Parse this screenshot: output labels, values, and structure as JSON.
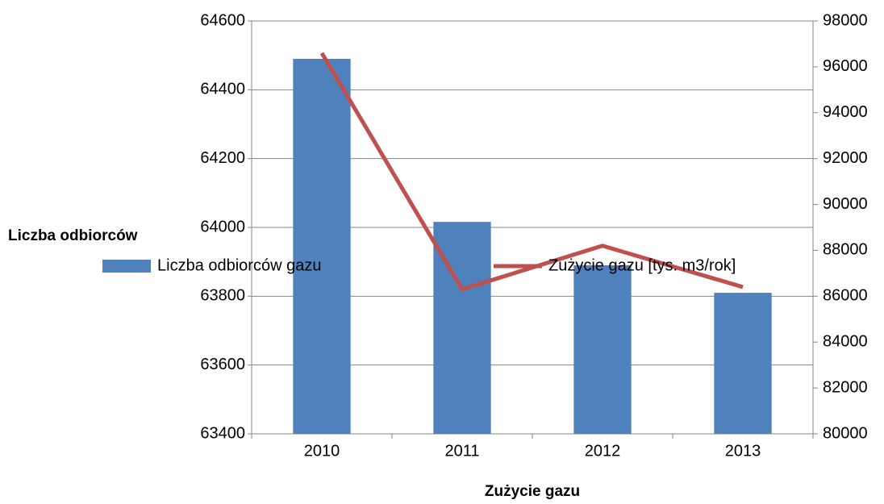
{
  "chart_data": {
    "type": "bar",
    "categories": [
      "2010",
      "2011",
      "2012",
      "2013"
    ],
    "series": [
      {
        "name": "Liczba odbiorców gazu",
        "type": "bar",
        "color": "#4f81bd",
        "values": [
          64490,
          64016,
          63890,
          63810
        ]
      },
      {
        "name": "Zużycie gazu [tys. m3/rok]",
        "type": "line",
        "axis": "y2",
        "color": "#c0504d",
        "values": [
          96600,
          86300,
          88200,
          86400
        ]
      }
    ],
    "ylabel": "Liczba odbiorców",
    "xlabel": "Zużycie gazu",
    "ylim": [
      63400,
      64600
    ],
    "yticks": [
      63400,
      63600,
      63800,
      64000,
      64200,
      64400,
      64600
    ],
    "y2lim": [
      80000,
      98000
    ],
    "y2ticks": [
      80000,
      82000,
      84000,
      86000,
      88000,
      90000,
      92000,
      94000,
      96000,
      98000
    ],
    "grid": true
  }
}
